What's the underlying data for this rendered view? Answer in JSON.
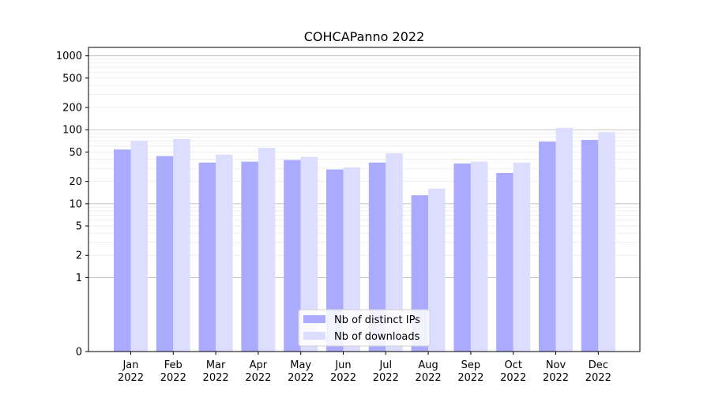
{
  "chart_data": {
    "type": "bar",
    "title": "COHCAPanno 2022",
    "xlabel": "",
    "ylabel": "",
    "y_scale": "symlog",
    "y_ticks": [
      0,
      1,
      2,
      5,
      10,
      20,
      50,
      100,
      200,
      500,
      1000
    ],
    "categories": [
      [
        "Jan",
        "2022"
      ],
      [
        "Feb",
        "2022"
      ],
      [
        "Mar",
        "2022"
      ],
      [
        "Apr",
        "2022"
      ],
      [
        "May",
        "2022"
      ],
      [
        "Jun",
        "2022"
      ],
      [
        "Jul",
        "2022"
      ],
      [
        "Aug",
        "2022"
      ],
      [
        "Sep",
        "2022"
      ],
      [
        "Oct",
        "2022"
      ],
      [
        "Nov",
        "2022"
      ],
      [
        "Dec",
        "2022"
      ]
    ],
    "series": [
      {
        "name": "Nb of distinct IPs",
        "color": "#aaaaff",
        "values": [
          54,
          44,
          36,
          37,
          39,
          29,
          36,
          13,
          35,
          26,
          69,
          73
        ]
      },
      {
        "name": "Nb of downloads",
        "color": "#ddddff",
        "values": [
          71,
          75,
          46,
          57,
          43,
          31,
          48,
          16,
          37,
          36,
          106,
          93
        ]
      }
    ],
    "legend_position": "bottom-center",
    "grid": "horizontal"
  }
}
